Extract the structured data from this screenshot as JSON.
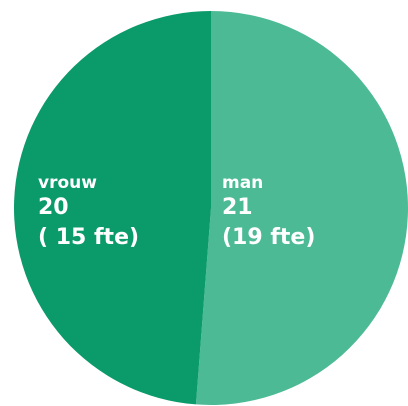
{
  "chart_data": {
    "type": "pie",
    "categories": [
      "man",
      "vrouw"
    ],
    "values": [
      21,
      20
    ],
    "fte_labels": [
      "(19 fte)",
      "( 15 fte)"
    ],
    "colors": [
      "#4dba96",
      "#0b9a69"
    ]
  }
}
